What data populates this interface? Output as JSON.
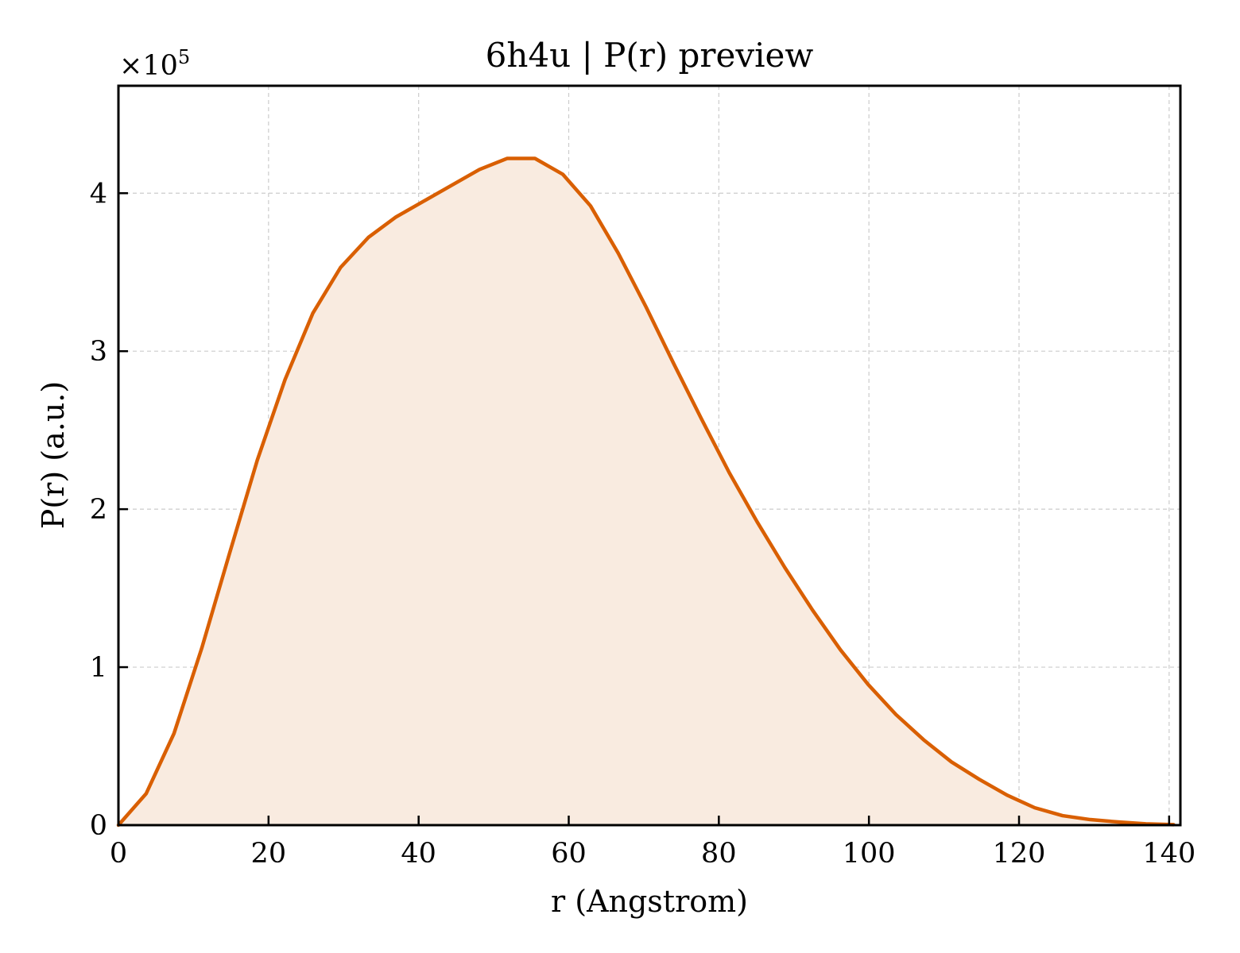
{
  "chart_data": {
    "type": "area",
    "title": "6h4u | P(r) preview",
    "xlabel": "r (Angstrom)",
    "ylabel": "P(r) (a.u.)",
    "y_offset_label": {
      "base": "×10",
      "exponent": "5"
    },
    "xlim": [
      0,
      141.5
    ],
    "ylim": [
      0,
      4.68
    ],
    "x_ticks": [
      0,
      20,
      40,
      60,
      80,
      100,
      120,
      140
    ],
    "x_tick_labels": [
      "0",
      "20",
      "40",
      "60",
      "80",
      "100",
      "120",
      "140"
    ],
    "y_ticks": [
      0,
      1,
      2,
      3,
      4
    ],
    "y_tick_labels": [
      "0",
      "1",
      "2",
      "3",
      "4"
    ],
    "grid": true,
    "line_color": "#d95f02",
    "fill_color": "#f9ebe0",
    "series": [
      {
        "x": [
          0,
          3.7,
          7.4,
          11.1,
          14.8,
          18.5,
          22.2,
          25.9,
          29.6,
          33.3,
          37.0,
          40.7,
          44.4,
          48.1,
          51.8,
          55.5,
          59.2,
          62.9,
          66.6,
          70.3,
          74.0,
          77.7,
          81.4,
          85.1,
          88.8,
          92.5,
          96.2,
          99.9,
          103.6,
          107.3,
          111.0,
          114.7,
          118.4,
          122.1,
          125.8,
          129.5,
          133.2,
          136.9,
          140.6
        ],
        "y": [
          0.0,
          0.2,
          0.58,
          1.12,
          1.72,
          2.31,
          2.82,
          3.24,
          3.53,
          3.72,
          3.85,
          3.95,
          4.05,
          4.15,
          4.22,
          4.22,
          4.12,
          3.92,
          3.62,
          3.28,
          2.92,
          2.57,
          2.23,
          1.92,
          1.63,
          1.36,
          1.11,
          0.89,
          0.7,
          0.54,
          0.4,
          0.29,
          0.19,
          0.11,
          0.06,
          0.035,
          0.02,
          0.008,
          0.003
        ]
      }
    ]
  }
}
